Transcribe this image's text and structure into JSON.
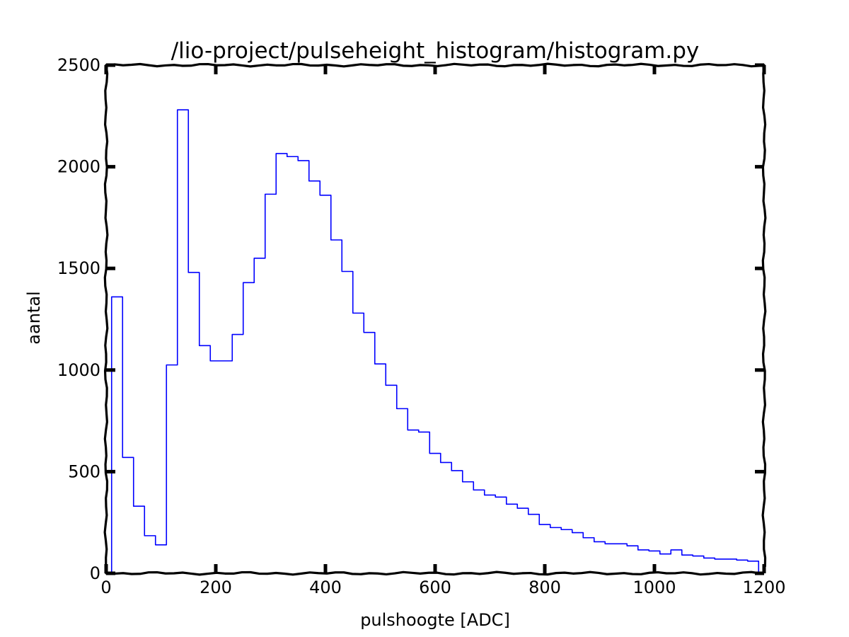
{
  "chart_data": {
    "type": "line",
    "drawstyle": "steps-post",
    "title": "/lio-project/pulseheight_histogram/histogram.py",
    "xlabel": "pulshoogte [ADC]",
    "ylabel": "aantal",
    "xlim": [
      0,
      1200
    ],
    "ylim": [
      0,
      2500
    ],
    "xticks": [
      0,
      200,
      400,
      600,
      800,
      1000,
      1200
    ],
    "yticks": [
      0,
      500,
      1000,
      1500,
      2000,
      2500
    ],
    "xtick_labels": [
      "0",
      "200",
      "400",
      "600",
      "800",
      "1000",
      "1200"
    ],
    "ytick_labels": [
      "0",
      "500",
      "1000",
      "1500",
      "2000",
      "2500"
    ],
    "grid": false,
    "style": "xkcd",
    "color": "#0000ff",
    "series": [
      {
        "x": [
          5,
          10,
          30,
          50,
          70,
          90,
          110,
          130,
          150,
          170,
          190,
          210,
          230,
          250,
          270,
          290,
          310,
          330,
          350,
          370,
          390,
          410,
          430,
          450,
          470,
          490,
          510,
          530,
          550,
          570,
          590,
          610,
          630,
          650,
          670,
          690,
          710,
          730,
          750,
          770,
          790,
          810,
          830,
          850,
          870,
          890,
          910,
          930,
          950,
          970,
          990,
          1010,
          1030,
          1050,
          1070,
          1090,
          1110,
          1130,
          1150,
          1170,
          1190
        ],
        "y": [
          0,
          1360,
          570,
          330,
          185,
          140,
          1025,
          2280,
          1480,
          1120,
          1045,
          1045,
          1175,
          1430,
          1550,
          1865,
          2065,
          2050,
          2030,
          1930,
          1860,
          1640,
          1485,
          1280,
          1185,
          1030,
          925,
          810,
          705,
          695,
          590,
          545,
          505,
          450,
          410,
          385,
          375,
          340,
          320,
          290,
          240,
          225,
          215,
          200,
          175,
          155,
          145,
          145,
          135,
          115,
          110,
          95,
          115,
          90,
          85,
          75,
          70,
          70,
          65,
          60,
          0
        ]
      }
    ]
  }
}
